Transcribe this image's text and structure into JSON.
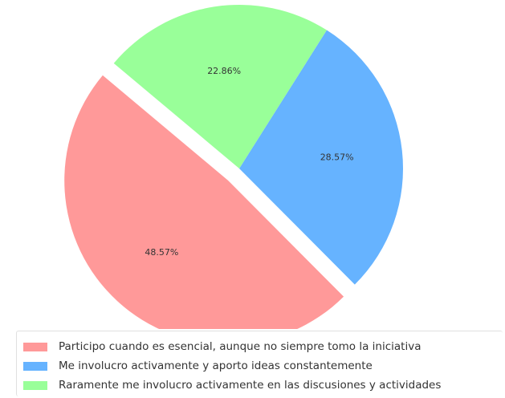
{
  "chart_data": {
    "type": "pie",
    "legend_position": "bottom",
    "slices": [
      {
        "label": "Participo cuando es esencial, aunque no siempre tomo la iniciativa",
        "value": 48.57,
        "display": "48.57%",
        "color": "#ff9999",
        "exploded": true
      },
      {
        "label": "Me involucro activamente y aporto ideas constantemente",
        "value": 28.57,
        "display": "28.57%",
        "color": "#66b3ff",
        "exploded": false
      },
      {
        "label": "Raramente me involucro activamente en las discusiones y actividades",
        "value": 22.86,
        "display": "22.86%",
        "color": "#99ff99",
        "exploded": false
      }
    ]
  }
}
